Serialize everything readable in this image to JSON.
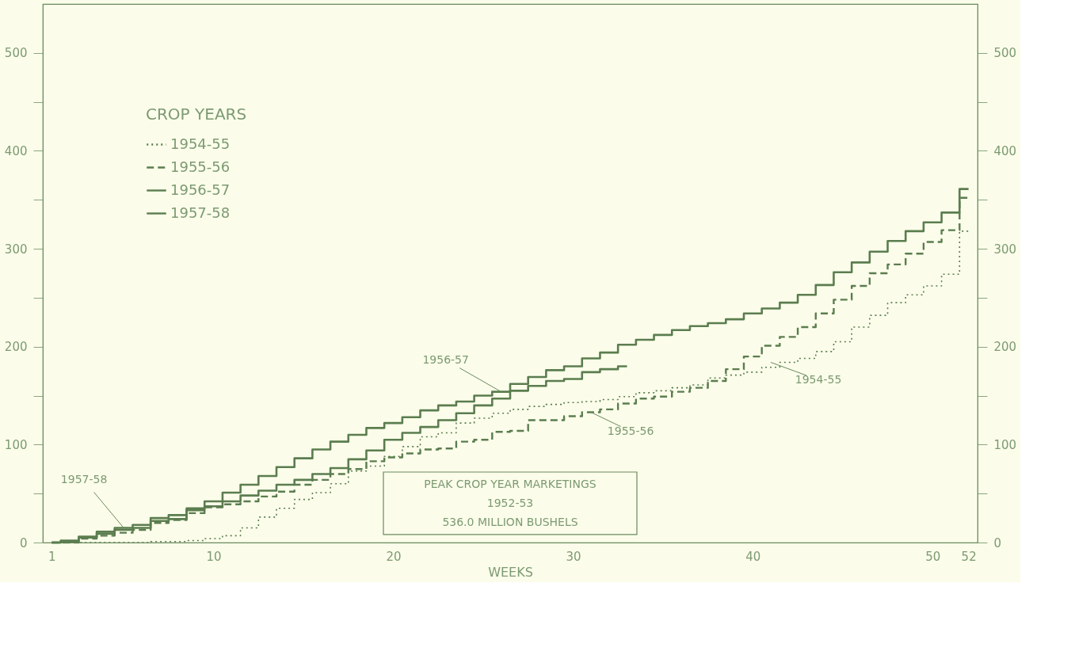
{
  "chart_data": {
    "type": "step",
    "xlabel": "WEEKS",
    "legend_title": "CROP YEARS",
    "x": [
      1,
      2,
      3,
      4,
      5,
      6,
      7,
      8,
      9,
      10,
      11,
      12,
      13,
      14,
      15,
      16,
      17,
      18,
      19,
      20,
      21,
      22,
      23,
      24,
      25,
      26,
      27,
      28,
      29,
      30,
      31,
      32,
      33,
      34,
      35,
      36,
      37,
      38,
      39,
      40,
      41,
      42,
      43,
      44,
      45,
      46,
      47,
      48,
      49,
      50,
      51,
      52
    ],
    "series": [
      {
        "name": "1954-55",
        "color": "#5b7d4f",
        "line_style": "dotted",
        "values": [
          0,
          0,
          0,
          0,
          0,
          0,
          1,
          1,
          2,
          4,
          7,
          15,
          26,
          35,
          44,
          51,
          60,
          73,
          78,
          88,
          98,
          108,
          112,
          122,
          127,
          132,
          136,
          139,
          141,
          143,
          144,
          146,
          149,
          153,
          155,
          158,
          161,
          168,
          171,
          174,
          179,
          184,
          188,
          195,
          205,
          220,
          232,
          245,
          253,
          262,
          274,
          318
        ]
      },
      {
        "name": "1955-56",
        "color": "#5b7d4f",
        "line_style": "dashed",
        "values": [
          0,
          0,
          4,
          7,
          10,
          13,
          20,
          23,
          30,
          36,
          39,
          42,
          47,
          52,
          59,
          64,
          70,
          75,
          83,
          87,
          91,
          95,
          96,
          103,
          105,
          113,
          114,
          125,
          125,
          129,
          133,
          136,
          142,
          147,
          149,
          154,
          158,
          165,
          177,
          190,
          201,
          210,
          220,
          234,
          248,
          262,
          275,
          284,
          295,
          307,
          319,
          352
        ]
      },
      {
        "name": "1956-57",
        "color": "#5b7d4f",
        "line_style": "solid",
        "values": [
          0,
          2,
          6,
          11,
          15,
          18,
          25,
          28,
          35,
          42,
          51,
          59,
          68,
          77,
          86,
          95,
          103,
          110,
          117,
          122,
          128,
          135,
          140,
          144,
          150,
          154,
          162,
          169,
          176,
          180,
          188,
          194,
          202,
          207,
          212,
          217,
          221,
          224,
          228,
          234,
          239,
          245,
          253,
          263,
          276,
          286,
          297,
          308,
          318,
          327,
          337,
          361
        ]
      },
      {
        "name": "1957-58",
        "color": "#5b7d4f",
        "line_style": "solid",
        "values": [
          0,
          1,
          5,
          9,
          13,
          15,
          22,
          24,
          33,
          37,
          42,
          48,
          53,
          59,
          64,
          70,
          76,
          85,
          94,
          105,
          112,
          118,
          125,
          132,
          140,
          147,
          155,
          160,
          165,
          167,
          174,
          177,
          180,
          null,
          null,
          null,
          null,
          null,
          null,
          null,
          null,
          null,
          null,
          null,
          null,
          null,
          null,
          null,
          null,
          null,
          null,
          null
        ]
      }
    ],
    "xlim": [
      0.5,
      52.5
    ],
    "xticks": [
      1,
      10,
      20,
      30,
      40,
      50,
      52
    ],
    "ylim": [
      0,
      550
    ],
    "yticks": [
      0,
      {
        "value": 50,
        "label": null
      },
      100,
      {
        "value": 150,
        "label": null
      },
      200,
      {
        "value": 250,
        "label": null
      },
      300,
      {
        "value": 350,
        "label": null
      },
      400,
      {
        "value": 450,
        "label": null
      },
      500
    ],
    "y2lim": [
      0,
      550
    ],
    "y2ticks": [
      0,
      {
        "value": 50,
        "label": null
      },
      100,
      {
        "value": 150,
        "label": null
      },
      200,
      {
        "value": 250,
        "label": null
      },
      300,
      {
        "value": 350,
        "label": null
      },
      400,
      {
        "value": 450,
        "label": null
      },
      500
    ],
    "annotations": [
      {
        "text": "1957-58",
        "x": 5,
        "y": 15
      },
      {
        "text": "1956-57",
        "x": 26,
        "y": 154
      },
      {
        "text": "1955-56",
        "x": 31,
        "y": 133
      },
      {
        "text": "1954-55",
        "x": 41,
        "y": 184
      },
      "PEAK CROP YEAR MARKETINGS",
      "1952-53",
      "536.0 MILLION BUSHELS"
    ],
    "legend": "top left",
    "grid": false
  }
}
